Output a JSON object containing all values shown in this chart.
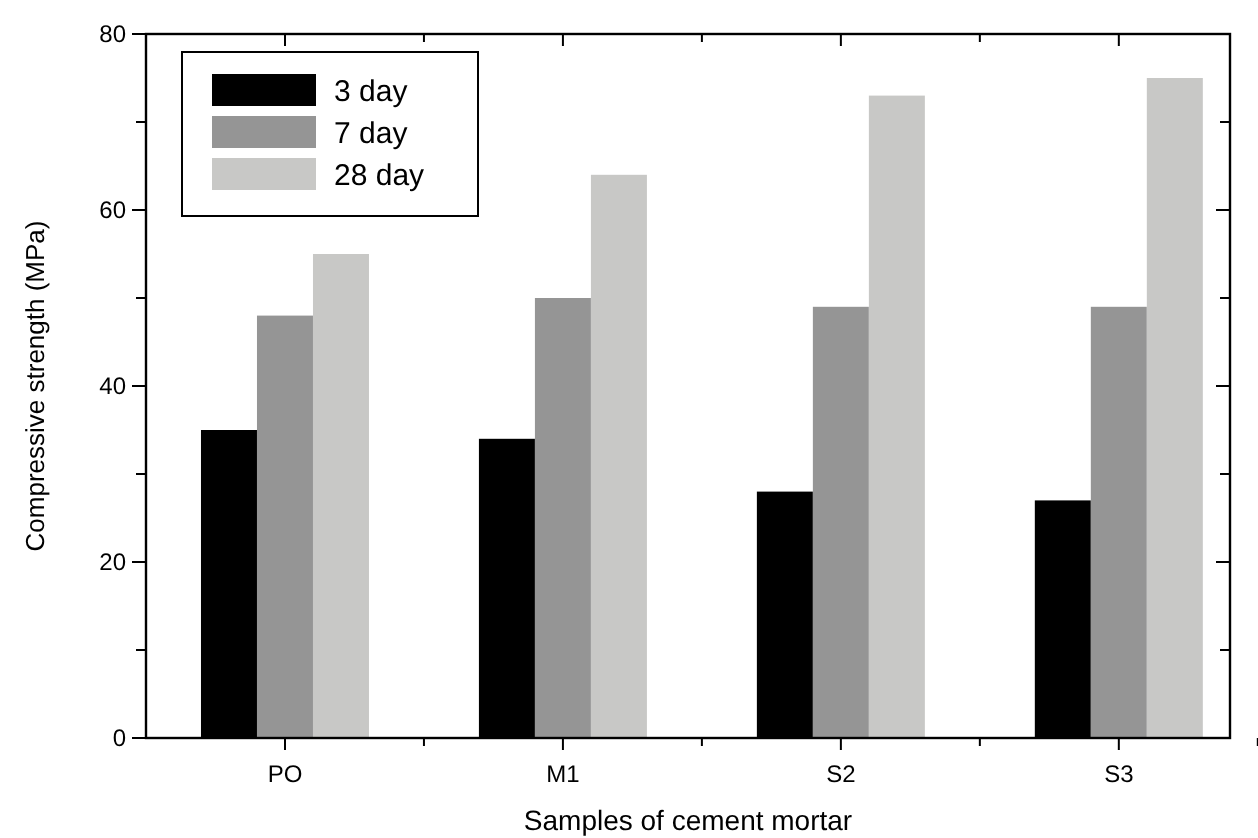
{
  "chart_data": {
    "type": "bar",
    "xlabel": "Samples of cement mortar",
    "ylabel": "Compressive strength (MPa)",
    "categories": [
      "PO",
      "M1",
      "S2",
      "S3"
    ],
    "series": [
      {
        "name": "3 day",
        "color": "#000000",
        "values": [
          35,
          34,
          28,
          27
        ]
      },
      {
        "name": "7 day",
        "color": "#959595",
        "values": [
          48,
          50,
          49,
          49
        ]
      },
      {
        "name": "28 day",
        "color": "#c8c8c6",
        "values": [
          55,
          64,
          73,
          75
        ]
      }
    ],
    "ylim": [
      0,
      80
    ],
    "yticks": [
      0,
      {
        "value": 10,
        "label": null
      },
      20,
      {
        "value": 30,
        "label": null
      },
      40,
      {
        "value": 50,
        "label": null
      },
      60,
      {
        "value": 70,
        "label": null
      },
      80
    ],
    "grid": false,
    "legend": "top left"
  }
}
